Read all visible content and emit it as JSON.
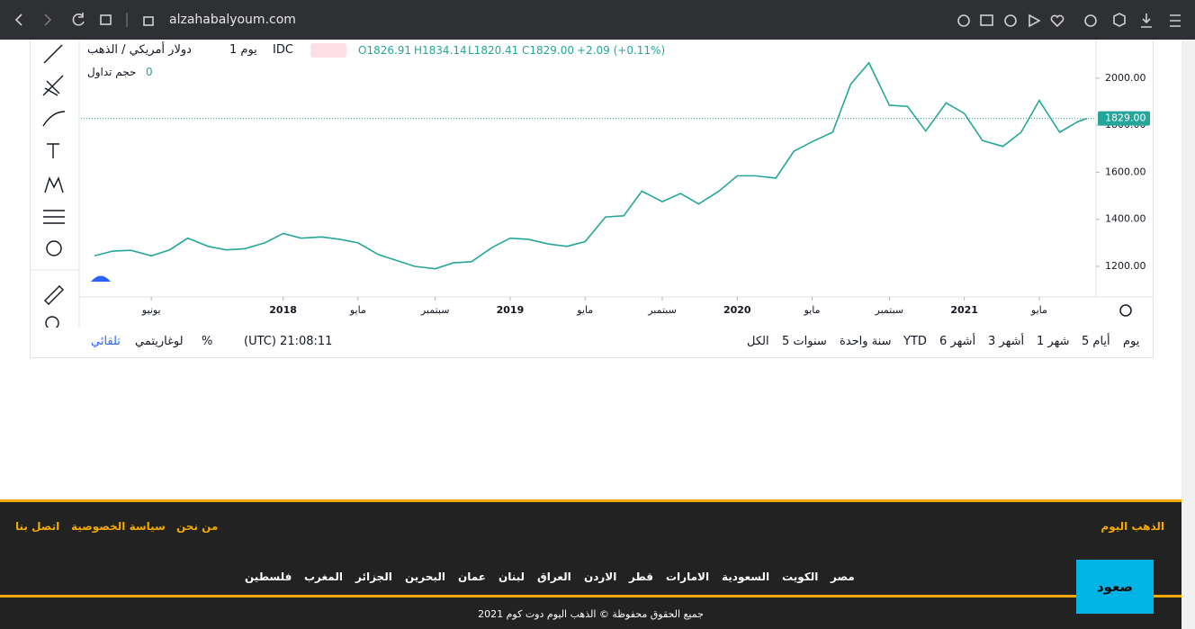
{
  "browser": {
    "url": "alzahabalyoum.com"
  },
  "chart_header": {
    "symbol": "دولار أمريكي / الذهب",
    "interval": "يوم 1",
    "source": "IDC",
    "open": "O1826.91",
    "high": "H1834.14",
    "low": "L1820.41",
    "close": "C1829.00",
    "change": "+2.09 (+0.11%)",
    "volume_label": "حجم تداول",
    "volume_value": "0"
  },
  "chart_data": {
    "type": "line",
    "x": [
      2017.17,
      2017.25,
      2017.33,
      2017.42,
      2017.5,
      2017.58,
      2017.67,
      2017.75,
      2017.83,
      2017.92,
      2018,
      2018.08,
      2018.17,
      2018.25,
      2018.33,
      2018.42,
      2018.5,
      2018.58,
      2018.67,
      2018.75,
      2018.83,
      2018.92,
      2019,
      2019.08,
      2019.17,
      2019.25,
      2019.33,
      2019.42,
      2019.5,
      2019.58,
      2019.67,
      2019.75,
      2019.83,
      2019.92,
      2020,
      2020.08,
      2020.17,
      2020.25,
      2020.33,
      2020.42,
      2020.5,
      2020.58,
      2020.67,
      2020.75,
      2020.83,
      2020.92,
      2021,
      2021.08,
      2021.17,
      2021.25,
      2021.33,
      2021.42,
      2021.5,
      2021.54
    ],
    "series": [
      {
        "color": "#26a69a",
        "values": [
          1245,
          1265,
          1268,
          1245,
          1270,
          1320,
          1285,
          1270,
          1275,
          1300,
          1340,
          1320,
          1325,
          1315,
          1300,
          1250,
          1225,
          1200,
          1190,
          1215,
          1220,
          1280,
          1320,
          1315,
          1295,
          1285,
          1305,
          1410,
          1415,
          1520,
          1475,
          1510,
          1465,
          1520,
          1585,
          1585,
          1575,
          1690,
          1730,
          1770,
          1975,
          2065,
          1885,
          1880,
          1775,
          1895,
          1850,
          1735,
          1710,
          1770,
          1905,
          1770,
          1815,
          1829
        ]
      }
    ],
    "xlim": [
      2017.11,
      2021.58
    ],
    "ylim": [
      1070,
      2164
    ],
    "xticks": [
      {
        "value": 2017.42,
        "label": "يونيو"
      },
      2018,
      {
        "value": 2018.33,
        "label": "مايو"
      },
      {
        "value": 2018.67,
        "label": "سبتمبر"
      },
      2019,
      {
        "value": 2019.33,
        "label": "مايو"
      },
      {
        "value": 2019.67,
        "label": "سبتمبر"
      },
      2020,
      {
        "value": 2020.33,
        "label": "مايو"
      },
      {
        "value": 2020.67,
        "label": "سبتمبر"
      },
      2021,
      {
        "value": 2021.33,
        "label": "مايو"
      }
    ],
    "yticks": [
      {
        "value": 1200,
        "label": "1200.00"
      },
      {
        "value": 1400,
        "label": "1400.00"
      },
      {
        "value": 1600,
        "label": "1600.00"
      },
      {
        "value": 1800,
        "label": "1800.00"
      },
      {
        "value": 2000,
        "label": "2000.00"
      }
    ],
    "last_price": {
      "value": 1829,
      "label": "1829.00"
    }
  },
  "toolbar": {
    "ranges": [
      "يوم",
      "5 أيام",
      "1 شهر",
      "3 أشهر",
      "6 أشهر",
      "YTD",
      "سنة واحدة",
      "5 سنوات",
      "الكل"
    ],
    "time": "(UTC) 21:08:11",
    "percent": "%",
    "log": "لوغاريتمي",
    "auto": "تلقائي"
  },
  "footer": {
    "brand": "الذهب اليوم",
    "links": [
      "من نحن",
      "سياسة الخصوصية",
      "اتصل بنا"
    ],
    "countries": [
      "مصر",
      "الكويت",
      "السعودية",
      "الامارات",
      "قطر",
      "الاردن",
      "العراق",
      "لبنان",
      "عمان",
      "البحرين",
      "الجزائر",
      "المغرب",
      "فلسطين"
    ],
    "button": "صعود",
    "copyright": "جميع الحقوق محفوظة © الذهب اليوم دوت كوم 2021"
  }
}
